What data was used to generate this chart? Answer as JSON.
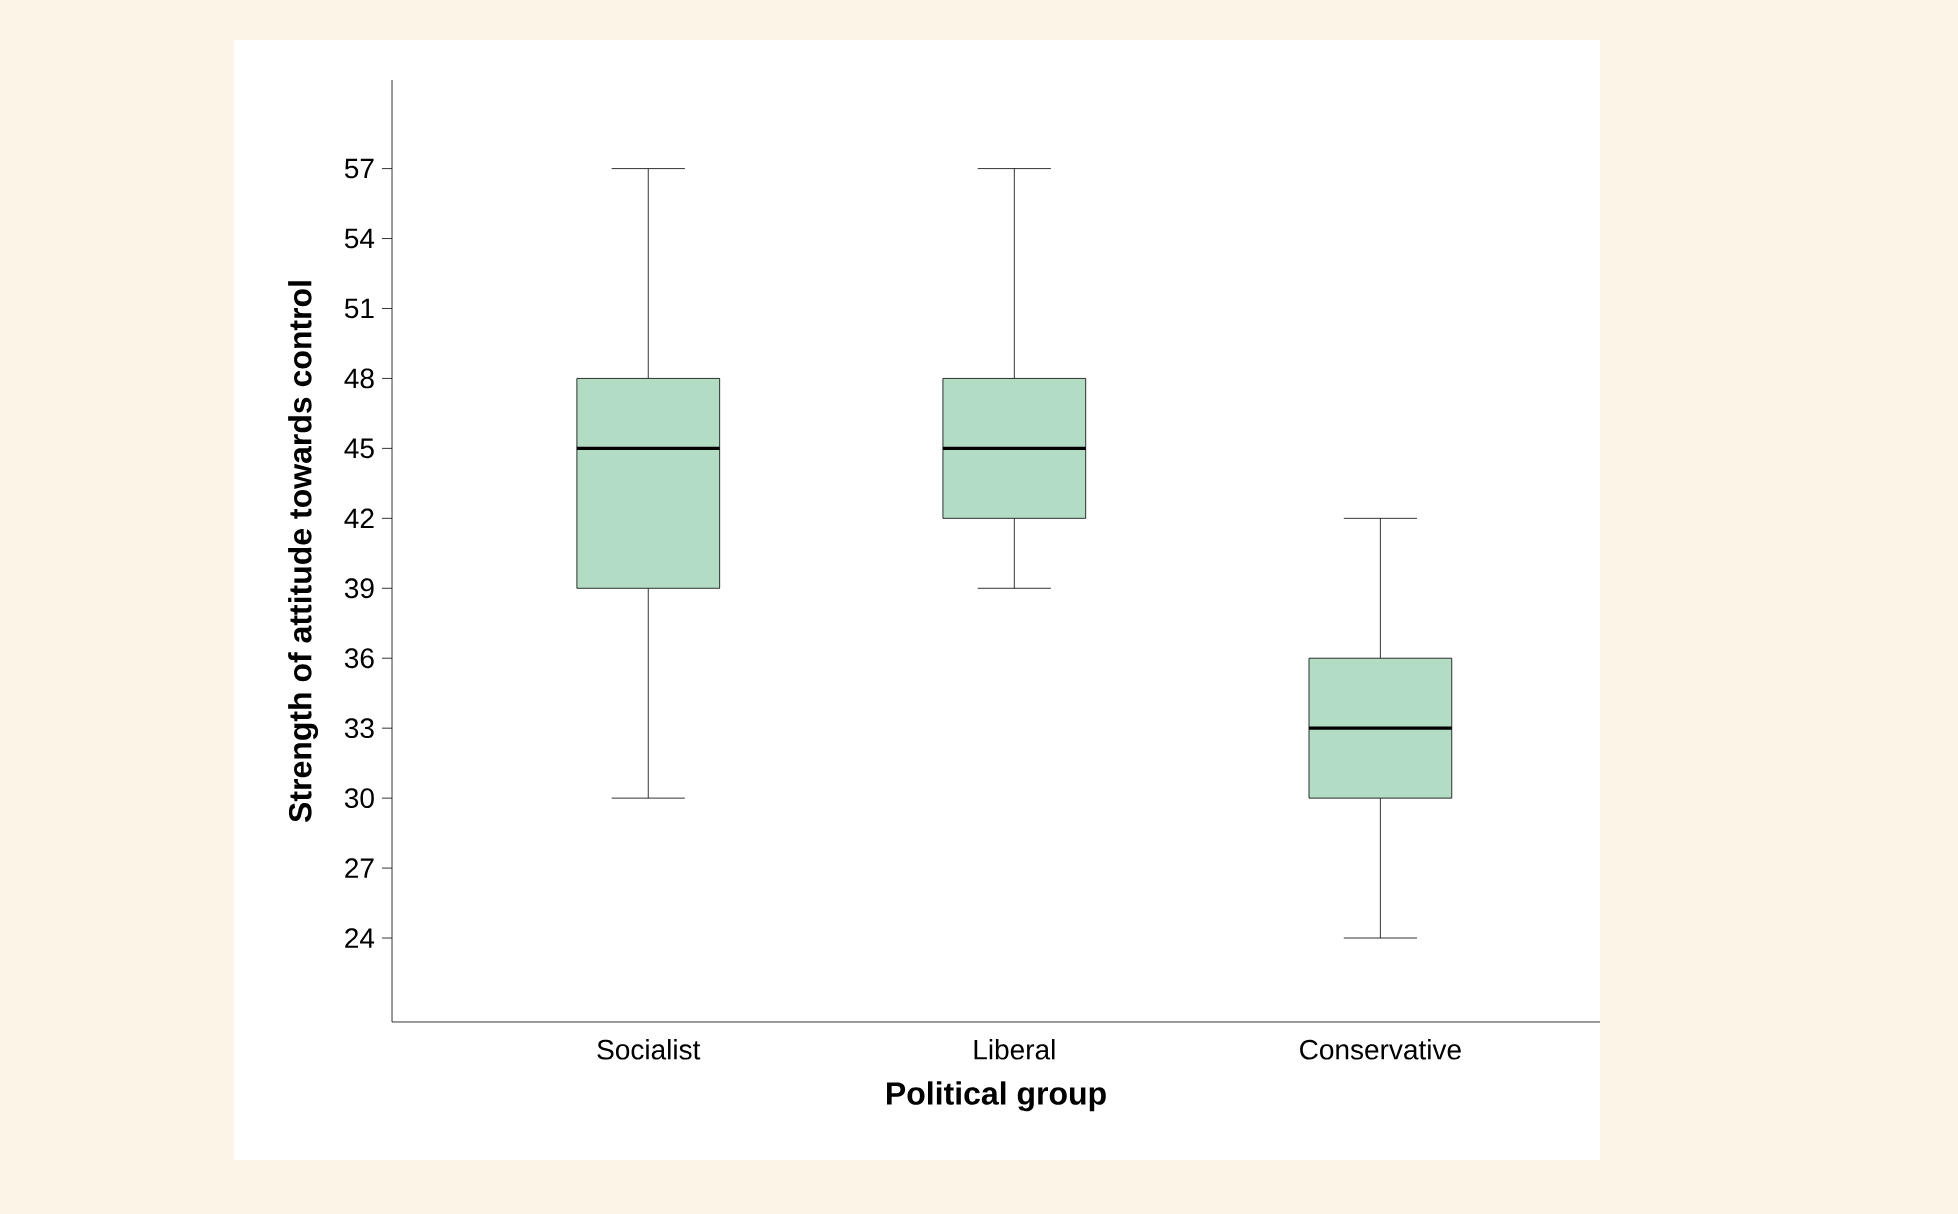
{
  "chart_data": {
    "type": "box",
    "xlabel": "Political group",
    "ylabel": "Strength of attitude towards control",
    "categories": [
      "Socialist",
      "Liberal",
      "Conservative"
    ],
    "color": "#b3dcc4",
    "boxes": [
      {
        "low": 30,
        "q1": 39,
        "median": 45,
        "q3": 48,
        "high": 57
      },
      {
        "low": 39,
        "q1": 42,
        "median": 45,
        "q3": 48,
        "high": 57
      },
      {
        "low": 24,
        "q1": 30,
        "median": 33,
        "q3": 36,
        "high": 42
      }
    ],
    "ylim": [
      20.4,
      60.8
    ],
    "yticks": [
      24,
      27,
      30,
      33,
      36,
      39,
      42,
      45,
      48,
      51,
      54,
      57
    ],
    "grid": false
  }
}
